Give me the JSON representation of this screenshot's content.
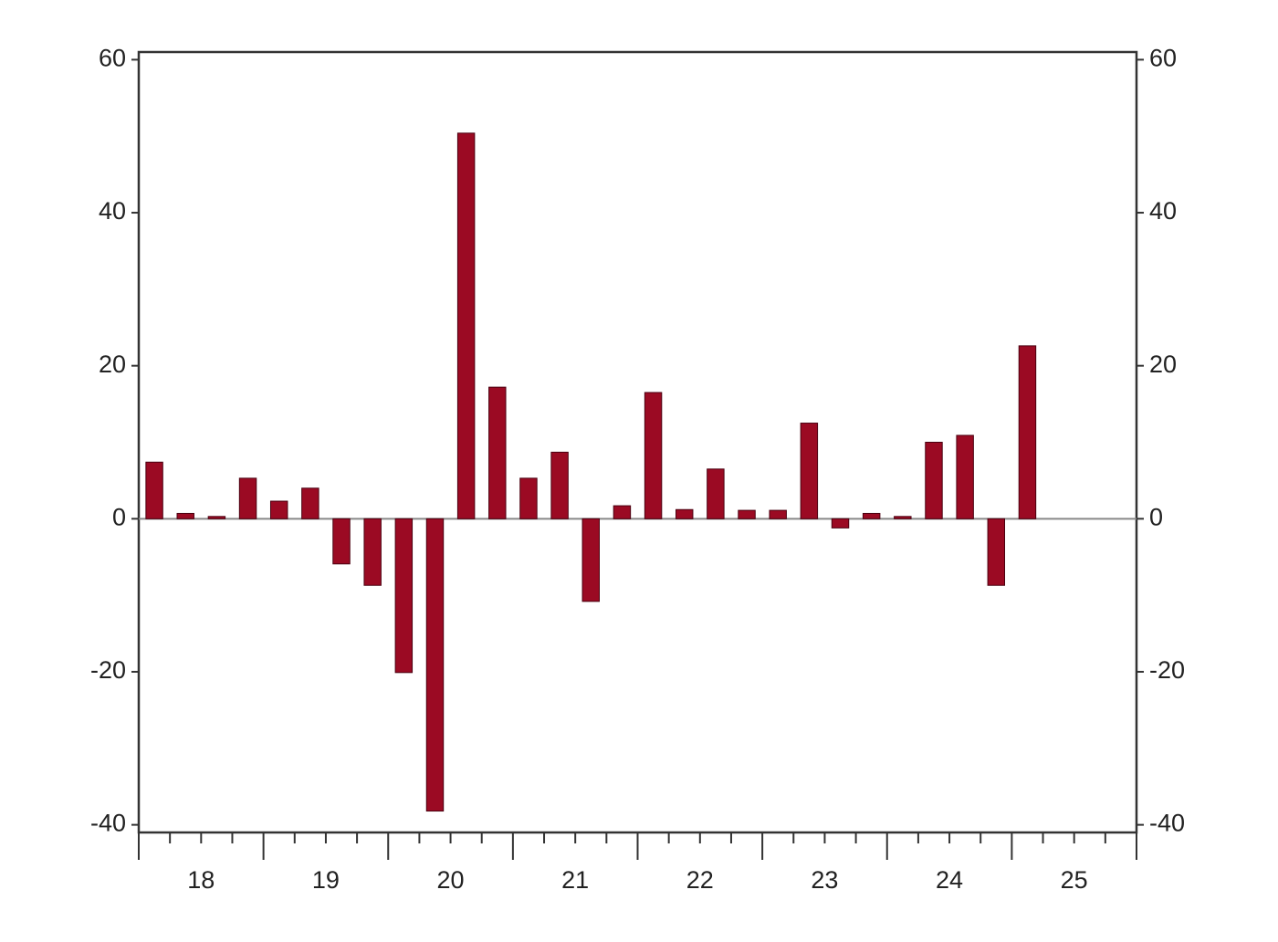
{
  "chart_data": {
    "type": "bar",
    "categories": [
      null,
      "18",
      null,
      null,
      null,
      "19",
      null,
      null,
      null,
      "20",
      null,
      null,
      null,
      "21",
      null,
      null,
      null,
      "22",
      null,
      null,
      null,
      "23",
      null,
      null,
      null,
      "24",
      null,
      null,
      null,
      "25",
      null,
      null
    ],
    "values": [
      7.4,
      0.7,
      0.3,
      5.3,
      2.3,
      4.0,
      -5.9,
      -8.7,
      -20.1,
      -38.2,
      50.4,
      17.2,
      5.3,
      8.7,
      -10.8,
      1.7,
      16.5,
      1.2,
      6.5,
      1.1,
      1.1,
      12.5,
      -1.2,
      0.7,
      0.3,
      10.0,
      10.9,
      -8.7,
      22.6,
      null,
      null,
      null
    ],
    "color": "#9b0a23",
    "ylim": [
      -41,
      61
    ],
    "yticks": [
      -40,
      -20,
      0,
      20,
      40,
      60
    ],
    "grid": false
  }
}
